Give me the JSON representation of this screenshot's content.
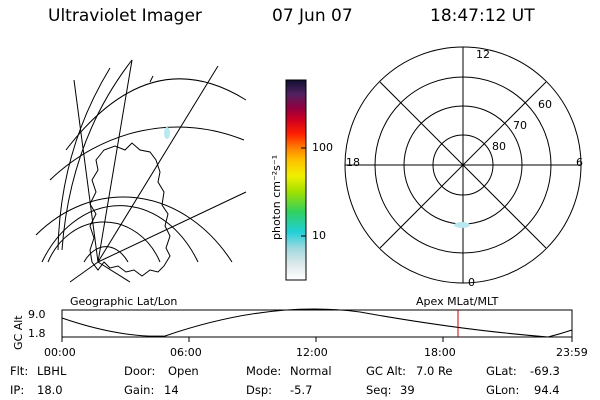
{
  "header": {
    "title": "Ultraviolet Imager",
    "date": "07 Jun 07",
    "time": "18:47:12 UT"
  },
  "colorbar": {
    "label": "photon cm⁻²s⁻¹",
    "tick_100": "100",
    "tick_10": "10"
  },
  "left_panel": {
    "label": "Geographic Lat/Lon"
  },
  "right_panel": {
    "label": "Apex MLat/MLT",
    "mlt_top": "12",
    "mlt_left": "18",
    "mlt_right": "6",
    "mlt_bottom": "0",
    "lat_60": "60",
    "lat_70": "70",
    "lat_80": "80"
  },
  "orbit": {
    "ylabel": "GC Alt",
    "y_max": "9.0",
    "y_min": "1.8",
    "x_ticks": [
      "00:00",
      "06:00",
      "12:00",
      "18:00",
      "23:59"
    ]
  },
  "info": {
    "filter_label": "Flt:",
    "filter_value": "LBHL",
    "ip_label": "IP:",
    "ip_value": "18.0",
    "door_label": "Door:",
    "door_value": "Open",
    "gain_label": "Gain:",
    "gain_value": "14",
    "mode_label": "Mode:",
    "mode_value": "Normal",
    "dsp_label": "Dsp:",
    "dsp_value": "-5.7",
    "gcalt_label": "GC Alt:",
    "gcalt_value": "7.0 Re",
    "seq_label": "Seq:",
    "seq_value": "39",
    "glat_label": "GLat:",
    "glat_value": "-69.3",
    "glon_label": "GLon:",
    "glon_value": "94.4"
  },
  "colors": {
    "line": "#000000",
    "orbit_marker": "#cc0000",
    "aurora": "#b8e8f0"
  }
}
